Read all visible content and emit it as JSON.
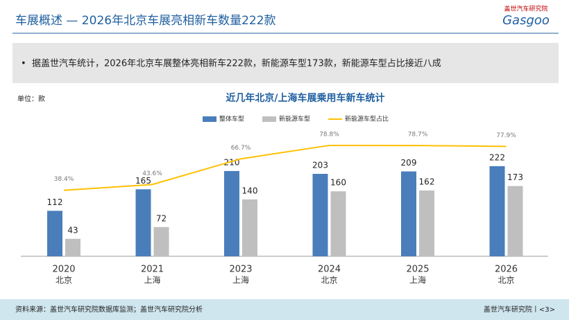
{
  "header": {
    "title": "车展概述 — 2026年北京车展亮相新车数量222款",
    "logo_top": "盖世汽车研究院",
    "logo_bottom": "Gasgoo"
  },
  "summary": {
    "bullet": "据盖世汽车统计，2026年北京车展整体亮相新车222款，新能源车型173款，新能源车型占比接近八成"
  },
  "chart_data": {
    "type": "bar",
    "title": "近几年北京/上海车展乘用车新车统计",
    "unit": "单位：款",
    "categories": [
      "2020",
      "2021",
      "2023",
      "2024",
      "2025",
      "2026"
    ],
    "category_sublabels": [
      "北京",
      "上海",
      "上海",
      "北京",
      "上海",
      "北京"
    ],
    "series": [
      {
        "name": "整体车型",
        "color": "#4a7ebb",
        "values": [
          112,
          165,
          210,
          203,
          209,
          222
        ]
      },
      {
        "name": "新能源车型",
        "color": "#bfbfbf",
        "values": [
          43,
          72,
          140,
          160,
          162,
          173
        ]
      },
      {
        "name": "新能源车型占比",
        "color": "#ffc000",
        "type": "line",
        "axis": "y2",
        "values": [
          38.4,
          43.6,
          66.7,
          78.8,
          78.7,
          77.9
        ],
        "value_labels": [
          "38.4%",
          "43.6%",
          "66.7%",
          "78.8%",
          "78.7%",
          "77.9%"
        ]
      }
    ],
    "ylim": [
      0,
      290
    ],
    "y2lim": [
      -21,
      85
    ]
  },
  "footer": {
    "source": "资料来源：盖世汽车研究院数据库监测；盖世汽车研究院分析",
    "right": "盖世汽车研究院丨<3>"
  }
}
